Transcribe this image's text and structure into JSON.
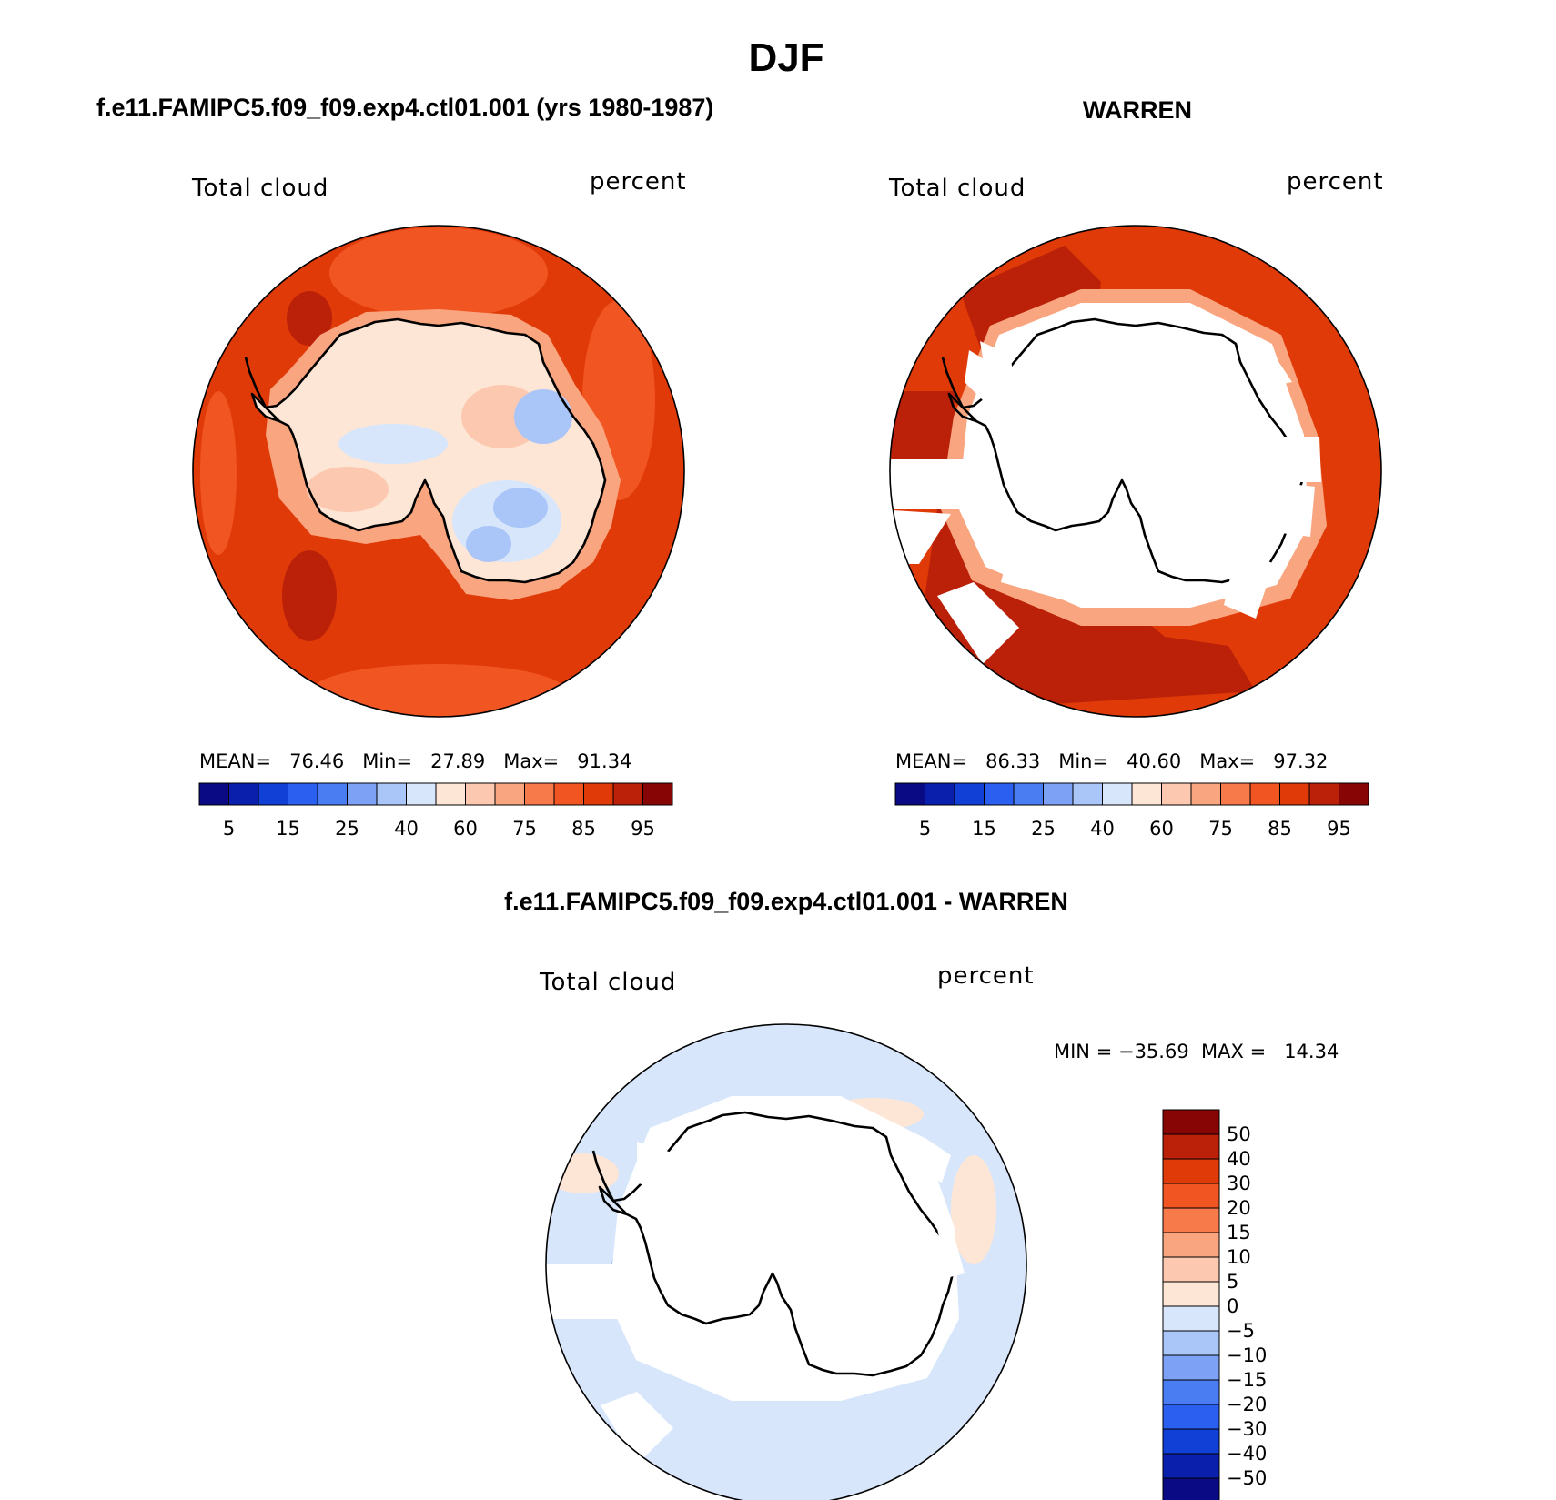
{
  "figure": {
    "title": "DJF",
    "panel_left_title": "f.e11.FAMIPC5.f09_f09.exp4.ctl01.001 (yrs 1980-1987)",
    "panel_right_title": "WARREN",
    "panel_bottom_title": "f.e11.FAMIPC5.f09_f09.exp4.ctl01.001 - WARREN"
  },
  "maps": {
    "left": {
      "variable_label": "Total cloud",
      "unit_label": "percent",
      "stats_text": "MEAN=   76.46   Min=   27.89   Max=   91.34"
    },
    "right": {
      "variable_label": "Total cloud",
      "unit_label": "percent",
      "stats_text": "MEAN=   86.33   Min=   40.60   Max=   97.32"
    },
    "bottom": {
      "variable_label": "Total cloud",
      "unit_label": "percent",
      "stats_text": "MIN = −35.69  MAX =   14.34"
    }
  },
  "colorbars": {
    "abs": {
      "colors": [
        "#0a0a85",
        "#0b1fad",
        "#1140d6",
        "#2a5ff0",
        "#4a7cf2",
        "#7da2f5",
        "#aac5f8",
        "#d7e6fb",
        "#fde6d6",
        "#fcc9b0",
        "#f9a57f",
        "#f77a4b",
        "#f15521",
        "#e03a09",
        "#bb2108",
        "#870505"
      ],
      "tick_labels": [
        "5",
        "15",
        "25",
        "40",
        "60",
        "75",
        "85",
        "95"
      ]
    },
    "diff": {
      "colors": [
        "#870505",
        "#bb2108",
        "#e03a09",
        "#f15521",
        "#f77a4b",
        "#f9a57f",
        "#fcc9b0",
        "#fde6d6",
        "#d7e6fb",
        "#aac5f8",
        "#7da2f5",
        "#4a7cf2",
        "#2a5ff0",
        "#1140d6",
        "#0b1fad",
        "#0a0a85"
      ],
      "tick_labels": [
        "50",
        "40",
        "30",
        "20",
        "15",
        "10",
        "5",
        "0",
        "−5",
        "−10",
        "−15",
        "−20",
        "−30",
        "−40",
        "−50"
      ]
    }
  }
}
